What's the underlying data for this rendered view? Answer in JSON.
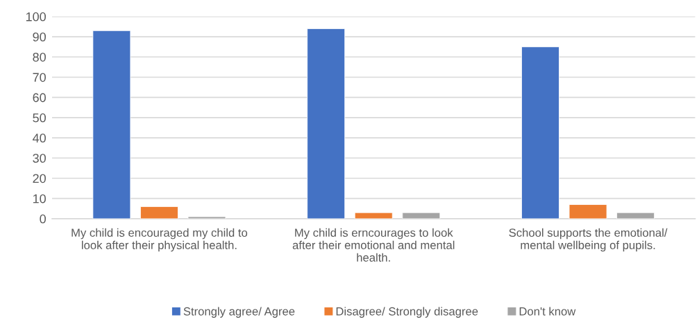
{
  "chart_data": {
    "type": "bar",
    "categories": [
      "My child is encouraged my child to look after their physical health.",
      "My child is erncourages to look after their emotional and mental health.",
      "School supports the emotional/ mental wellbeing of pupils."
    ],
    "series": [
      {
        "name": "Strongly agree/ Agree",
        "color": "#4472c4",
        "values": [
          93,
          94,
          85
        ]
      },
      {
        "name": "Disagree/ Strongly disagree",
        "color": "#ed7d31",
        "values": [
          6,
          3,
          7
        ]
      },
      {
        "name": "Don't know",
        "color": "#a5a5a5",
        "values": [
          1,
          3,
          3
        ]
      }
    ],
    "ylim": [
      0,
      100
    ],
    "yticks": [
      0,
      10,
      20,
      30,
      40,
      50,
      60,
      70,
      80,
      90,
      100
    ],
    "grid": "y",
    "legend": "bottom"
  }
}
